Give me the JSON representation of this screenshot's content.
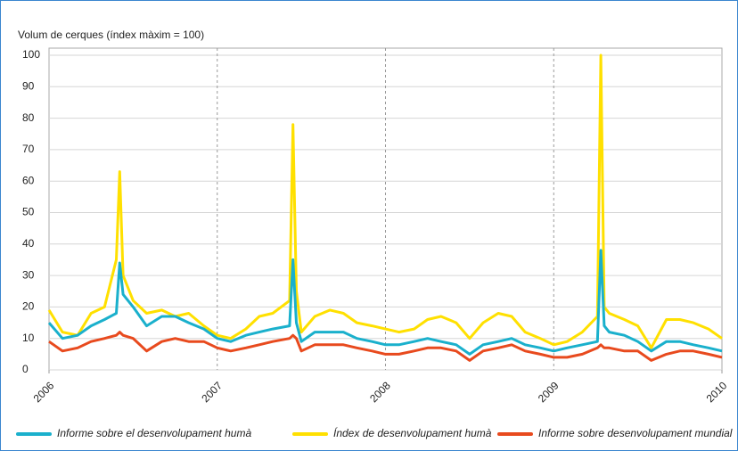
{
  "chart_data": {
    "type": "line",
    "ylabel": "Volum de cerques (índex màxim = 100)",
    "x": [
      2006.0,
      2006.08,
      2006.17,
      2006.25,
      2006.33,
      2006.4,
      2006.42,
      2006.44,
      2006.5,
      2006.58,
      2006.67,
      2006.75,
      2006.83,
      2006.92,
      2007.0,
      2007.08,
      2007.17,
      2007.25,
      2007.33,
      2007.43,
      2007.45,
      2007.47,
      2007.5,
      2007.58,
      2007.67,
      2007.75,
      2007.83,
      2007.92,
      2008.0,
      2008.08,
      2008.17,
      2008.25,
      2008.33,
      2008.42,
      2008.5,
      2008.58,
      2008.67,
      2008.75,
      2008.83,
      2008.92,
      2009.0,
      2009.08,
      2009.17,
      2009.26,
      2009.28,
      2009.3,
      2009.33,
      2009.42,
      2009.5,
      2009.58,
      2009.67,
      2009.75,
      2009.83,
      2009.92,
      2010.0
    ],
    "series": [
      {
        "name": "Informe sobre el desenvolupament humà",
        "color": "#1ab0cc",
        "values": [
          15,
          10,
          11,
          14,
          16,
          18,
          34,
          24,
          20,
          14,
          17,
          17,
          15,
          13,
          10,
          9,
          11,
          12,
          13,
          14,
          35,
          15,
          9,
          12,
          12,
          12,
          10,
          9,
          8,
          8,
          9,
          10,
          9,
          8,
          5,
          8,
          9,
          10,
          8,
          7,
          6,
          7,
          8,
          9,
          38,
          14,
          12,
          11,
          9,
          6,
          9,
          9,
          8,
          7,
          6
        ]
      },
      {
        "name": "Índex de desenvolupament humà",
        "color": "#ffe000",
        "values": [
          19,
          12,
          11,
          18,
          20,
          35,
          63,
          30,
          22,
          18,
          19,
          17,
          18,
          14,
          11,
          10,
          13,
          17,
          18,
          22,
          78,
          25,
          12,
          17,
          19,
          18,
          15,
          14,
          13,
          12,
          13,
          16,
          17,
          15,
          10,
          15,
          18,
          17,
          12,
          10,
          8,
          9,
          12,
          17,
          100,
          20,
          18,
          16,
          14,
          7,
          16,
          16,
          15,
          13,
          10
        ]
      },
      {
        "name": "Informe sobre desenvolupament mundial",
        "color": "#e84a1e",
        "values": [
          9,
          6,
          7,
          9,
          10,
          11,
          12,
          11,
          10,
          6,
          9,
          10,
          9,
          9,
          7,
          6,
          7,
          8,
          9,
          10,
          11,
          10,
          6,
          8,
          8,
          8,
          7,
          6,
          5,
          5,
          6,
          7,
          7,
          6,
          3,
          6,
          7,
          8,
          6,
          5,
          4,
          4,
          5,
          7,
          8,
          7,
          7,
          6,
          6,
          3,
          5,
          6,
          6,
          5,
          4
        ]
      }
    ],
    "xlim": [
      2006,
      2010
    ],
    "xticks": [
      2006,
      2007,
      2008,
      2009,
      2010
    ],
    "ylim": [
      0,
      100
    ],
    "yticks": [
      0,
      10,
      20,
      30,
      40,
      50,
      60,
      70,
      80,
      90,
      100
    ],
    "grid": true,
    "legend": "bottom"
  }
}
